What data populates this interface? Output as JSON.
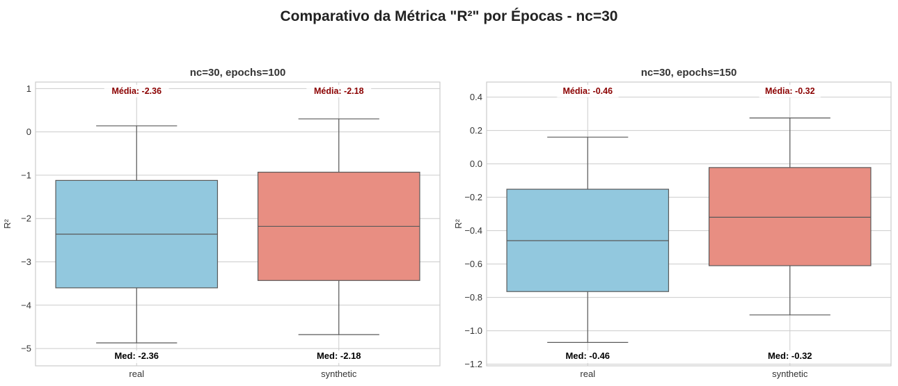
{
  "figure": {
    "title": "Comparativo da Métrica \"R²\" por Épocas - nc=30"
  },
  "chart_data": [
    {
      "type": "box",
      "title": "nc=30, epochs=100",
      "xlabel": "",
      "ylabel": "R²",
      "ylim": [
        -5.4,
        1.15
      ],
      "yticks": [
        1,
        0,
        -1,
        -2,
        -3,
        -4,
        -5
      ],
      "ytick_labels": [
        "1",
        "0",
        "−1",
        "−2",
        "−3",
        "−4",
        "−5"
      ],
      "grid": true,
      "categories": [
        "real",
        "synthetic"
      ],
      "colors": [
        "#92c8de",
        "#e88e82"
      ],
      "boxes": [
        {
          "category": "real",
          "whisker_low": -4.87,
          "q1": -3.6,
          "median": -2.36,
          "q3": -1.12,
          "whisker_high": 0.14,
          "mean": -2.36
        },
        {
          "category": "synthetic",
          "whisker_low": -4.68,
          "q1": -3.43,
          "median": -2.18,
          "q3": -0.93,
          "whisker_high": 0.3,
          "mean": -2.18
        }
      ],
      "annotations": {
        "mean_labels": [
          "Média: -2.36",
          "Média: -2.18"
        ],
        "median_labels": [
          "Med: -2.36",
          "Med: -2.18"
        ]
      }
    },
    {
      "type": "box",
      "title": "nc=30, epochs=150",
      "xlabel": "",
      "ylabel": "R²",
      "ylim": [
        -1.21,
        0.49
      ],
      "yticks": [
        0.4,
        0.2,
        0.0,
        -0.2,
        -0.4,
        -0.6,
        -0.8,
        -1.0,
        -1.2
      ],
      "ytick_labels": [
        "0.4",
        "0.2",
        "0.0",
        "−0.2",
        "−0.4",
        "−0.6",
        "−0.8",
        "−1.0",
        "−1.2"
      ],
      "grid": true,
      "categories": [
        "real",
        "synthetic"
      ],
      "colors": [
        "#92c8de",
        "#e88e82"
      ],
      "boxes": [
        {
          "category": "real",
          "whisker_low": -1.07,
          "q1": -0.765,
          "median": -0.46,
          "q3": -0.152,
          "whisker_high": 0.16,
          "mean": -0.46
        },
        {
          "category": "synthetic",
          "whisker_low": -0.905,
          "q1": -0.61,
          "median": -0.32,
          "q3": -0.022,
          "whisker_high": 0.275,
          "mean": -0.32
        }
      ],
      "annotations": {
        "mean_labels": [
          "Média: -0.46",
          "Média: -0.32"
        ],
        "median_labels": [
          "Med: -0.46",
          "Med: -0.32"
        ]
      }
    }
  ]
}
